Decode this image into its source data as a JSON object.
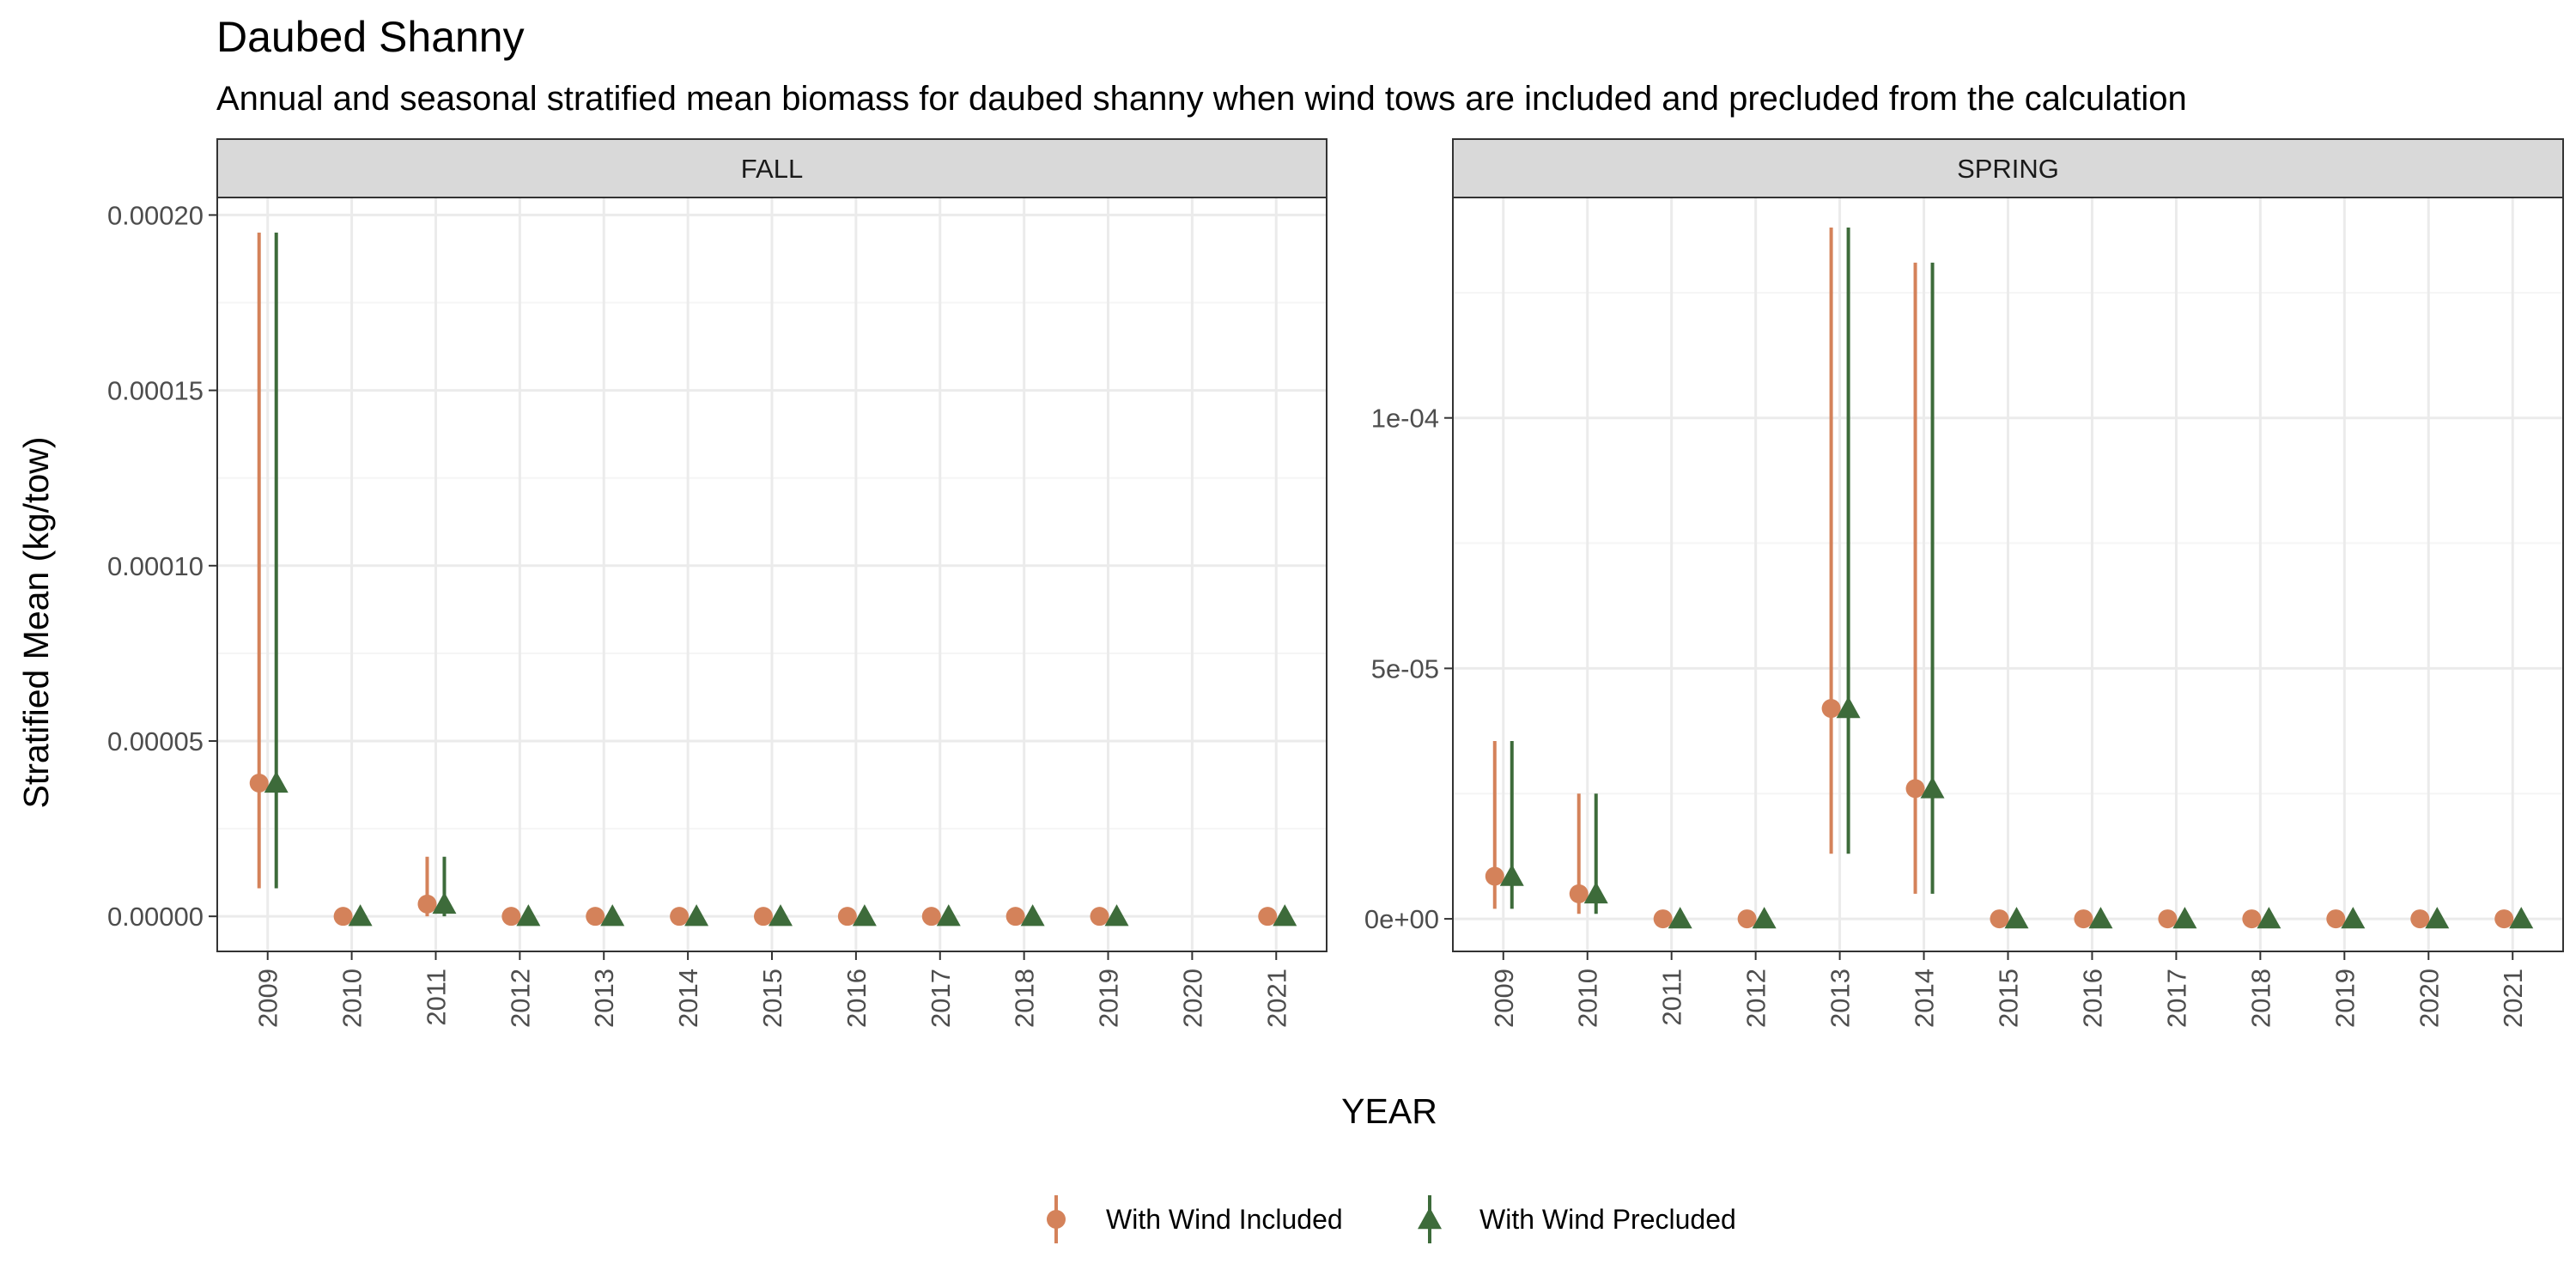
{
  "title": "Daubed Shanny",
  "subtitle": "Annual and seasonal stratified mean biomass for daubed shanny when wind tows are included and precluded from the calculation",
  "colors": {
    "included": "#D4825A",
    "precluded": "#3D6B3A",
    "strip_bg": "#D9D9D9",
    "grid_major": "#EBEBEB",
    "grid_minor": "#F5F5F5",
    "frame": "#333333"
  },
  "chart_data": [
    {
      "type": "scatter",
      "panel": "FALL",
      "xlabel": "YEAR",
      "ylabel": "Stratified Mean (kg/tow)",
      "ylim": [
        -1e-05,
        0.000205
      ],
      "yticks": [
        0,
        5e-05,
        0.0001,
        0.00015,
        0.0002
      ],
      "ytick_labels": [
        "0.00000",
        "0.00005",
        "0.00010",
        "0.00015",
        "0.00020"
      ],
      "categories": [
        "2009",
        "2010",
        "2011",
        "2012",
        "2013",
        "2014",
        "2015",
        "2016",
        "2017",
        "2018",
        "2019",
        "2020",
        "2021"
      ],
      "series": [
        {
          "name": "With Wind Included",
          "marker": "circle",
          "points": [
            {
              "x": "2009",
              "y": 3.8e-05,
              "lo": 8e-06,
              "hi": 0.000195
            },
            {
              "x": "2010",
              "y": 0.0,
              "lo": 0.0,
              "hi": 0.0
            },
            {
              "x": "2011",
              "y": 3.5e-06,
              "lo": 0.0,
              "hi": 1.7e-05
            },
            {
              "x": "2012",
              "y": 0.0,
              "lo": 0.0,
              "hi": 0.0
            },
            {
              "x": "2013",
              "y": 0.0,
              "lo": 0.0,
              "hi": 0.0
            },
            {
              "x": "2014",
              "y": 0.0,
              "lo": 0.0,
              "hi": 0.0
            },
            {
              "x": "2015",
              "y": 0.0,
              "lo": 0.0,
              "hi": 0.0
            },
            {
              "x": "2016",
              "y": 0.0,
              "lo": 0.0,
              "hi": 0.0
            },
            {
              "x": "2017",
              "y": 0.0,
              "lo": 0.0,
              "hi": 0.0
            },
            {
              "x": "2018",
              "y": 0.0,
              "lo": 0.0,
              "hi": 0.0
            },
            {
              "x": "2019",
              "y": 0.0,
              "lo": 0.0,
              "hi": 0.0
            },
            {
              "x": "2021",
              "y": 0.0,
              "lo": 0.0,
              "hi": 0.0
            }
          ]
        },
        {
          "name": "With Wind Precluded",
          "marker": "triangle",
          "points": [
            {
              "x": "2009",
              "y": 3.8e-05,
              "lo": 8e-06,
              "hi": 0.000195
            },
            {
              "x": "2010",
              "y": 0.0,
              "lo": 0.0,
              "hi": 0.0
            },
            {
              "x": "2011",
              "y": 3.5e-06,
              "lo": 0.0,
              "hi": 1.7e-05
            },
            {
              "x": "2012",
              "y": 0.0,
              "lo": 0.0,
              "hi": 0.0
            },
            {
              "x": "2013",
              "y": 0.0,
              "lo": 0.0,
              "hi": 0.0
            },
            {
              "x": "2014",
              "y": 0.0,
              "lo": 0.0,
              "hi": 0.0
            },
            {
              "x": "2015",
              "y": 0.0,
              "lo": 0.0,
              "hi": 0.0
            },
            {
              "x": "2016",
              "y": 0.0,
              "lo": 0.0,
              "hi": 0.0
            },
            {
              "x": "2017",
              "y": 0.0,
              "lo": 0.0,
              "hi": 0.0
            },
            {
              "x": "2018",
              "y": 0.0,
              "lo": 0.0,
              "hi": 0.0
            },
            {
              "x": "2019",
              "y": 0.0,
              "lo": 0.0,
              "hi": 0.0
            },
            {
              "x": "2021",
              "y": 0.0,
              "lo": 0.0,
              "hi": 0.0
            }
          ]
        }
      ]
    },
    {
      "type": "scatter",
      "panel": "SPRING",
      "xlabel": "YEAR",
      "ylabel": "Stratified Mean (kg/tow)",
      "ylim": [
        -6.5e-06,
        0.000144
      ],
      "yticks": [
        0,
        5e-05,
        0.0001
      ],
      "ytick_labels": [
        "0e+00",
        "5e-05",
        "1e-04"
      ],
      "categories": [
        "2009",
        "2010",
        "2011",
        "2012",
        "2013",
        "2014",
        "2015",
        "2016",
        "2017",
        "2018",
        "2019",
        "2020",
        "2021"
      ],
      "series": [
        {
          "name": "With Wind Included",
          "marker": "circle",
          "points": [
            {
              "x": "2009",
              "y": 8.5e-06,
              "lo": 2e-06,
              "hi": 3.55e-05
            },
            {
              "x": "2010",
              "y": 5e-06,
              "lo": 1e-06,
              "hi": 2.5e-05
            },
            {
              "x": "2011",
              "y": 0.0,
              "lo": 0.0,
              "hi": 0.0
            },
            {
              "x": "2012",
              "y": 0.0,
              "lo": 0.0,
              "hi": 0.0
            },
            {
              "x": "2013",
              "y": 4.2e-05,
              "lo": 1.3e-05,
              "hi": 0.000138
            },
            {
              "x": "2014",
              "y": 2.6e-05,
              "lo": 5e-06,
              "hi": 0.000131
            },
            {
              "x": "2015",
              "y": 0.0,
              "lo": 0.0,
              "hi": 0.0
            },
            {
              "x": "2016",
              "y": 0.0,
              "lo": 0.0,
              "hi": 0.0
            },
            {
              "x": "2017",
              "y": 0.0,
              "lo": 0.0,
              "hi": 0.0
            },
            {
              "x": "2018",
              "y": 0.0,
              "lo": 0.0,
              "hi": 0.0
            },
            {
              "x": "2019",
              "y": 0.0,
              "lo": 0.0,
              "hi": 0.0
            },
            {
              "x": "2020",
              "y": 0.0,
              "lo": 0.0,
              "hi": 0.0
            },
            {
              "x": "2021",
              "y": 0.0,
              "lo": 0.0,
              "hi": 0.0
            }
          ]
        },
        {
          "name": "With Wind Precluded",
          "marker": "triangle",
          "points": [
            {
              "x": "2009",
              "y": 8.5e-06,
              "lo": 2e-06,
              "hi": 3.55e-05
            },
            {
              "x": "2010",
              "y": 5e-06,
              "lo": 1e-06,
              "hi": 2.5e-05
            },
            {
              "x": "2011",
              "y": 0.0,
              "lo": 0.0,
              "hi": 0.0
            },
            {
              "x": "2012",
              "y": 0.0,
              "lo": 0.0,
              "hi": 0.0
            },
            {
              "x": "2013",
              "y": 4.2e-05,
              "lo": 1.3e-05,
              "hi": 0.000138
            },
            {
              "x": "2014",
              "y": 2.6e-05,
              "lo": 5e-06,
              "hi": 0.000131
            },
            {
              "x": "2015",
              "y": 0.0,
              "lo": 0.0,
              "hi": 0.0
            },
            {
              "x": "2016",
              "y": 0.0,
              "lo": 0.0,
              "hi": 0.0
            },
            {
              "x": "2017",
              "y": 0.0,
              "lo": 0.0,
              "hi": 0.0
            },
            {
              "x": "2018",
              "y": 0.0,
              "lo": 0.0,
              "hi": 0.0
            },
            {
              "x": "2019",
              "y": 0.0,
              "lo": 0.0,
              "hi": 0.0
            },
            {
              "x": "2020",
              "y": 0.0,
              "lo": 0.0,
              "hi": 0.0
            },
            {
              "x": "2021",
              "y": 0.0,
              "lo": 0.0,
              "hi": 0.0
            }
          ]
        }
      ]
    }
  ],
  "legend": {
    "placement": "bottom",
    "items": [
      "With Wind Included",
      "With Wind Precluded"
    ]
  }
}
